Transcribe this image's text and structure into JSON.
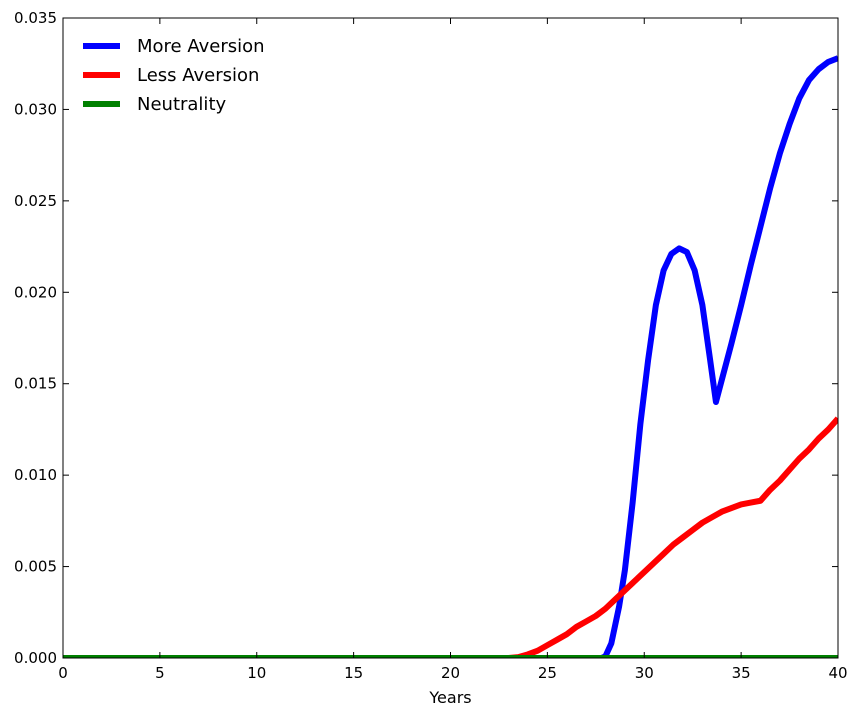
{
  "chart_data": {
    "type": "line",
    "title": "",
    "xlabel": "Years",
    "ylabel": "",
    "xlim": [
      0,
      40
    ],
    "ylim": [
      0,
      0.035
    ],
    "xticks": [
      "0",
      "5",
      "10",
      "15",
      "20",
      "25",
      "30",
      "35",
      "40"
    ],
    "yticks": [
      "0.000",
      "0.005",
      "0.010",
      "0.015",
      "0.020",
      "0.025",
      "0.030",
      "0.035"
    ],
    "grid": false,
    "legend_position": "top-left",
    "series": [
      {
        "name": "More Aversion",
        "color": "#0000ff",
        "points": [
          [
            0,
            0
          ],
          [
            27.8,
            0
          ],
          [
            28.0,
            0.0001
          ],
          [
            28.3,
            0.0008
          ],
          [
            28.7,
            0.0028
          ],
          [
            29.0,
            0.0048
          ],
          [
            29.4,
            0.0085
          ],
          [
            29.8,
            0.0128
          ],
          [
            30.2,
            0.0163
          ],
          [
            30.6,
            0.0193
          ],
          [
            31.0,
            0.0212
          ],
          [
            31.4,
            0.0221
          ],
          [
            31.8,
            0.0224
          ],
          [
            32.2,
            0.0222
          ],
          [
            32.6,
            0.0212
          ],
          [
            33.0,
            0.0193
          ],
          [
            33.4,
            0.0163
          ],
          [
            33.7,
            0.014
          ],
          [
            34.0,
            0.0152
          ],
          [
            34.5,
            0.0172
          ],
          [
            35.0,
            0.0193
          ],
          [
            35.5,
            0.0215
          ],
          [
            36.0,
            0.0236
          ],
          [
            36.5,
            0.0257
          ],
          [
            37.0,
            0.0276
          ],
          [
            37.5,
            0.0292
          ],
          [
            38.0,
            0.0306
          ],
          [
            38.5,
            0.0316
          ],
          [
            39.0,
            0.0322
          ],
          [
            39.5,
            0.0326
          ],
          [
            40.0,
            0.0328
          ]
        ]
      },
      {
        "name": "Less Aversion",
        "color": "#ff0000",
        "points": [
          [
            0,
            0
          ],
          [
            23.0,
            0
          ],
          [
            23.5,
            5e-05
          ],
          [
            24.0,
            0.0002
          ],
          [
            24.5,
            0.0004
          ],
          [
            25.0,
            0.0007
          ],
          [
            25.5,
            0.001
          ],
          [
            26.0,
            0.0013
          ],
          [
            26.5,
            0.0017
          ],
          [
            27.0,
            0.002
          ],
          [
            27.5,
            0.0023
          ],
          [
            28.0,
            0.0027
          ],
          [
            28.5,
            0.0032
          ],
          [
            29.0,
            0.0037
          ],
          [
            29.5,
            0.0042
          ],
          [
            30.0,
            0.0047
          ],
          [
            30.5,
            0.0052
          ],
          [
            31.0,
            0.0057
          ],
          [
            31.5,
            0.0062
          ],
          [
            32.0,
            0.0066
          ],
          [
            32.5,
            0.007
          ],
          [
            33.0,
            0.0074
          ],
          [
            33.5,
            0.0077
          ],
          [
            34.0,
            0.008
          ],
          [
            34.5,
            0.0082
          ],
          [
            35.0,
            0.0084
          ],
          [
            35.5,
            0.0085
          ],
          [
            36.0,
            0.0086
          ],
          [
            36.5,
            0.0092
          ],
          [
            37.0,
            0.0097
          ],
          [
            37.5,
            0.0103
          ],
          [
            38.0,
            0.0109
          ],
          [
            38.5,
            0.0114
          ],
          [
            39.0,
            0.012
          ],
          [
            39.5,
            0.0125
          ],
          [
            40.0,
            0.0131
          ]
        ]
      },
      {
        "name": "Neutrality",
        "color": "#008000",
        "points": [
          [
            0,
            0
          ],
          [
            40,
            0
          ]
        ]
      }
    ]
  }
}
